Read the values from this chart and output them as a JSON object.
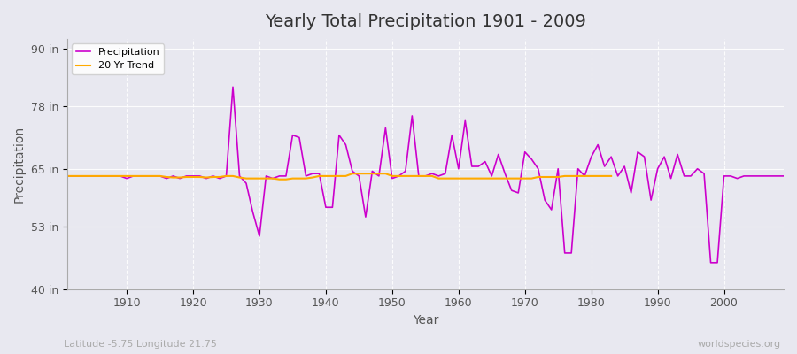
{
  "title": "Yearly Total Precipitation 1901 - 2009",
  "xlabel": "Year",
  "ylabel": "Precipitation",
  "subtitle_left": "Latitude -5.75 Longitude 21.75",
  "subtitle_right": "worldspecies.org",
  "bg_color": "#e8e8f0",
  "plot_bg_color": "#e8e8f0",
  "precip_color": "#cc00cc",
  "trend_color": "#ffaa00",
  "ylim": [
    40,
    92
  ],
  "yticks": [
    40,
    53,
    65,
    78,
    90
  ],
  "ytick_labels": [
    "40 in",
    "53 in",
    "65 in",
    "78 in",
    "90 in"
  ],
  "years": [
    1901,
    1902,
    1903,
    1904,
    1905,
    1906,
    1907,
    1908,
    1909,
    1910,
    1911,
    1912,
    1913,
    1914,
    1915,
    1916,
    1917,
    1918,
    1919,
    1920,
    1921,
    1922,
    1923,
    1924,
    1925,
    1926,
    1927,
    1928,
    1929,
    1930,
    1931,
    1932,
    1933,
    1934,
    1935,
    1936,
    1937,
    1938,
    1939,
    1940,
    1941,
    1942,
    1943,
    1944,
    1945,
    1946,
    1947,
    1948,
    1949,
    1950,
    1951,
    1952,
    1953,
    1954,
    1955,
    1956,
    1957,
    1958,
    1959,
    1960,
    1961,
    1962,
    1963,
    1964,
    1965,
    1966,
    1967,
    1968,
    1969,
    1970,
    1971,
    1972,
    1973,
    1974,
    1975,
    1976,
    1977,
    1978,
    1979,
    1980,
    1981,
    1982,
    1983,
    1984,
    1985,
    1986,
    1987,
    1988,
    1989,
    1990,
    1991,
    1992,
    1993,
    1994,
    1995,
    1996,
    1997,
    1998,
    1999,
    2000,
    2001,
    2002,
    2003,
    2004,
    2005,
    2006,
    2007,
    2008,
    2009
  ],
  "precip": [
    63.5,
    63.5,
    63.5,
    63.5,
    63.5,
    63.5,
    63.5,
    63.5,
    63.5,
    63.0,
    63.5,
    63.5,
    63.5,
    63.5,
    63.5,
    63.0,
    63.5,
    63.0,
    63.5,
    63.5,
    63.5,
    63.0,
    63.5,
    63.0,
    63.5,
    82.0,
    63.5,
    62.0,
    56.0,
    51.0,
    63.5,
    63.0,
    63.5,
    63.5,
    72.0,
    71.5,
    63.5,
    64.0,
    64.0,
    57.0,
    57.0,
    72.0,
    70.0,
    64.5,
    63.5,
    55.0,
    64.5,
    63.5,
    73.5,
    63.0,
    63.5,
    64.5,
    76.0,
    63.5,
    63.5,
    64.0,
    63.5,
    64.0,
    72.0,
    65.0,
    75.0,
    65.5,
    65.5,
    66.5,
    63.5,
    68.0,
    64.0,
    60.5,
    60.0,
    68.5,
    67.0,
    65.0,
    58.5,
    56.5,
    65.0,
    47.5,
    47.5,
    65.0,
    63.5,
    67.5,
    70.0,
    65.5,
    67.5,
    63.5,
    65.5,
    60.0,
    68.5,
    67.5,
    58.5,
    65.0,
    67.5,
    63.0,
    68.0,
    63.5,
    63.5,
    65.0,
    64.0,
    45.5,
    45.5,
    63.5,
    63.5,
    63.0,
    63.5,
    63.5,
    63.5,
    63.5,
    63.5,
    63.5,
    63.5
  ],
  "trend": [
    63.5,
    63.5,
    63.5,
    63.5,
    63.5,
    63.5,
    63.5,
    63.5,
    63.5,
    63.5,
    63.5,
    63.5,
    63.5,
    63.5,
    63.5,
    63.3,
    63.2,
    63.2,
    63.3,
    63.3,
    63.3,
    63.2,
    63.3,
    63.3,
    63.5,
    63.5,
    63.2,
    63.0,
    63.0,
    63.0,
    63.0,
    63.0,
    62.8,
    62.8,
    63.0,
    63.0,
    63.0,
    63.2,
    63.5,
    63.5,
    63.5,
    63.5,
    63.5,
    64.0,
    64.0,
    64.0,
    64.0,
    64.0,
    64.0,
    63.5,
    63.5,
    63.5,
    63.5,
    63.5,
    63.5,
    63.5,
    63.0,
    63.0,
    63.0,
    63.0,
    63.0,
    63.0,
    63.0,
    63.0,
    63.0,
    63.0,
    63.0,
    63.0,
    63.0,
    63.0,
    63.0,
    63.3,
    63.3,
    63.3,
    63.3,
    63.5,
    63.5,
    63.5,
    63.5,
    63.5,
    63.5,
    63.5,
    63.5,
    null,
    null,
    null,
    null,
    null,
    null,
    null,
    null,
    null,
    null,
    null,
    null,
    null,
    null,
    null,
    null,
    null,
    null,
    null,
    null,
    null,
    null,
    null,
    null,
    null
  ]
}
